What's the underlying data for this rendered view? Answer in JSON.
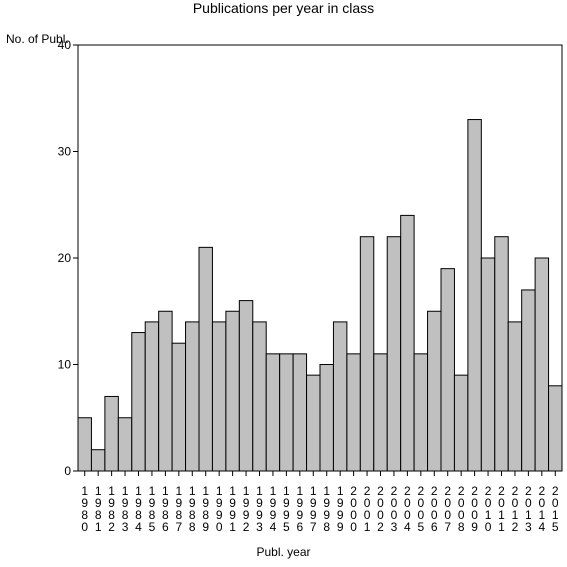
{
  "chart_data": {
    "type": "bar",
    "title": "Publications per year in class",
    "ylabel": "No. of Publ.",
    "xlabel": "Publ. year",
    "ylim": [
      0,
      40
    ],
    "yticks": [
      0,
      10,
      20,
      30,
      40
    ],
    "categories": [
      "1980",
      "1981",
      "1982",
      "1983",
      "1984",
      "1985",
      "1986",
      "1987",
      "1988",
      "1989",
      "1990",
      "1991",
      "1992",
      "1993",
      "1994",
      "1995",
      "1996",
      "1997",
      "1998",
      "1999",
      "2000",
      "2001",
      "2002",
      "2003",
      "2004",
      "2005",
      "2006",
      "2007",
      "2008",
      "2009",
      "2010",
      "2011",
      "2012",
      "2013",
      "2014",
      "2015"
    ],
    "values": [
      5,
      2,
      7,
      5,
      13,
      14,
      15,
      12,
      14,
      21,
      14,
      15,
      16,
      14,
      11,
      11,
      11,
      9,
      10,
      14,
      11,
      22,
      11,
      22,
      24,
      11,
      15,
      19,
      9,
      33,
      20,
      22,
      14,
      17,
      20,
      8
    ],
    "bar_color": "#c0c0c0",
    "grid": false,
    "legend": "none"
  }
}
